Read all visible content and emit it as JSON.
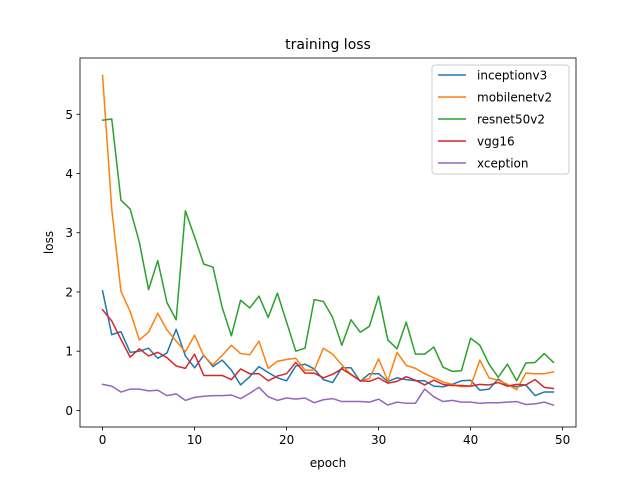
{
  "chart_data": {
    "type": "line",
    "title": "training loss",
    "xlabel": "epoch",
    "ylabel": "loss",
    "xlim": [
      -2.45,
      51.45
    ],
    "ylim": [
      -0.28,
      5.95
    ],
    "xticks": [
      0,
      10,
      20,
      30,
      40,
      50
    ],
    "yticks": [
      0,
      1,
      2,
      3,
      4,
      5
    ],
    "grid": false,
    "legend_position": "top-right",
    "x": [
      0,
      1,
      2,
      3,
      4,
      5,
      6,
      7,
      8,
      9,
      10,
      11,
      12,
      13,
      14,
      15,
      16,
      17,
      18,
      19,
      20,
      21,
      22,
      23,
      24,
      25,
      26,
      27,
      28,
      29,
      30,
      31,
      32,
      33,
      34,
      35,
      36,
      37,
      38,
      39,
      40,
      41,
      42,
      43,
      44,
      45,
      46,
      47,
      48,
      49
    ],
    "series": [
      {
        "name": "inceptionv3",
        "color": "#1f77b4",
        "values": [
          2.02,
          1.28,
          1.33,
          0.98,
          1.0,
          1.05,
          0.88,
          0.97,
          1.37,
          0.92,
          0.72,
          0.93,
          0.74,
          0.85,
          0.68,
          0.43,
          0.57,
          0.74,
          0.64,
          0.55,
          0.5,
          0.75,
          0.78,
          0.7,
          0.52,
          0.47,
          0.72,
          0.72,
          0.49,
          0.62,
          0.62,
          0.49,
          0.55,
          0.52,
          0.5,
          0.5,
          0.41,
          0.4,
          0.44,
          0.5,
          0.51,
          0.34,
          0.36,
          0.53,
          0.42,
          0.4,
          0.43,
          0.25,
          0.31,
          0.31
        ]
      },
      {
        "name": "mobilenetv2",
        "color": "#ff7f0e",
        "values": [
          5.66,
          3.4,
          2.01,
          1.67,
          1.19,
          1.32,
          1.64,
          1.36,
          1.17,
          0.99,
          1.27,
          0.92,
          0.77,
          0.93,
          1.1,
          0.96,
          0.94,
          1.17,
          0.71,
          0.83,
          0.86,
          0.88,
          0.68,
          0.68,
          1.05,
          0.95,
          0.77,
          0.6,
          0.5,
          0.54,
          0.87,
          0.5,
          0.98,
          0.76,
          0.71,
          0.62,
          0.55,
          0.48,
          0.44,
          0.4,
          0.41,
          0.85,
          0.55,
          0.51,
          0.44,
          0.35,
          0.63,
          0.62,
          0.62,
          0.65
        ]
      },
      {
        "name": "resnet50v2",
        "color": "#2ca02c",
        "values": [
          4.9,
          4.92,
          3.55,
          3.4,
          2.84,
          2.04,
          2.53,
          1.82,
          1.53,
          3.37,
          2.93,
          2.47,
          2.42,
          1.74,
          1.26,
          1.86,
          1.73,
          1.93,
          1.57,
          1.98,
          1.49,
          1.0,
          1.05,
          1.87,
          1.84,
          1.57,
          1.1,
          1.53,
          1.32,
          1.42,
          1.93,
          1.19,
          1.04,
          1.49,
          0.95,
          0.95,
          1.07,
          0.73,
          0.66,
          0.67,
          1.22,
          1.1,
          0.78,
          0.56,
          0.78,
          0.5,
          0.8,
          0.81,
          0.96,
          0.81
        ]
      },
      {
        "name": "vgg16",
        "color": "#d62728",
        "values": [
          1.7,
          1.51,
          1.2,
          0.9,
          1.04,
          0.92,
          0.98,
          0.89,
          0.75,
          0.71,
          0.95,
          0.59,
          0.59,
          0.59,
          0.52,
          0.7,
          0.62,
          0.62,
          0.5,
          0.58,
          0.62,
          0.81,
          0.63,
          0.63,
          0.55,
          0.61,
          0.7,
          0.61,
          0.5,
          0.49,
          0.55,
          0.46,
          0.49,
          0.57,
          0.51,
          0.43,
          0.51,
          0.44,
          0.42,
          0.42,
          0.41,
          0.44,
          0.43,
          0.47,
          0.41,
          0.44,
          0.43,
          0.52,
          0.39,
          0.37
        ]
      },
      {
        "name": "xception",
        "color": "#9467bd",
        "values": [
          0.44,
          0.41,
          0.31,
          0.36,
          0.36,
          0.33,
          0.34,
          0.25,
          0.28,
          0.17,
          0.22,
          0.24,
          0.25,
          0.25,
          0.26,
          0.2,
          0.29,
          0.39,
          0.23,
          0.17,
          0.21,
          0.19,
          0.21,
          0.13,
          0.18,
          0.2,
          0.15,
          0.15,
          0.15,
          0.14,
          0.19,
          0.09,
          0.14,
          0.12,
          0.12,
          0.36,
          0.23,
          0.15,
          0.17,
          0.14,
          0.14,
          0.12,
          0.13,
          0.13,
          0.14,
          0.15,
          0.1,
          0.11,
          0.14,
          0.09
        ]
      }
    ]
  }
}
